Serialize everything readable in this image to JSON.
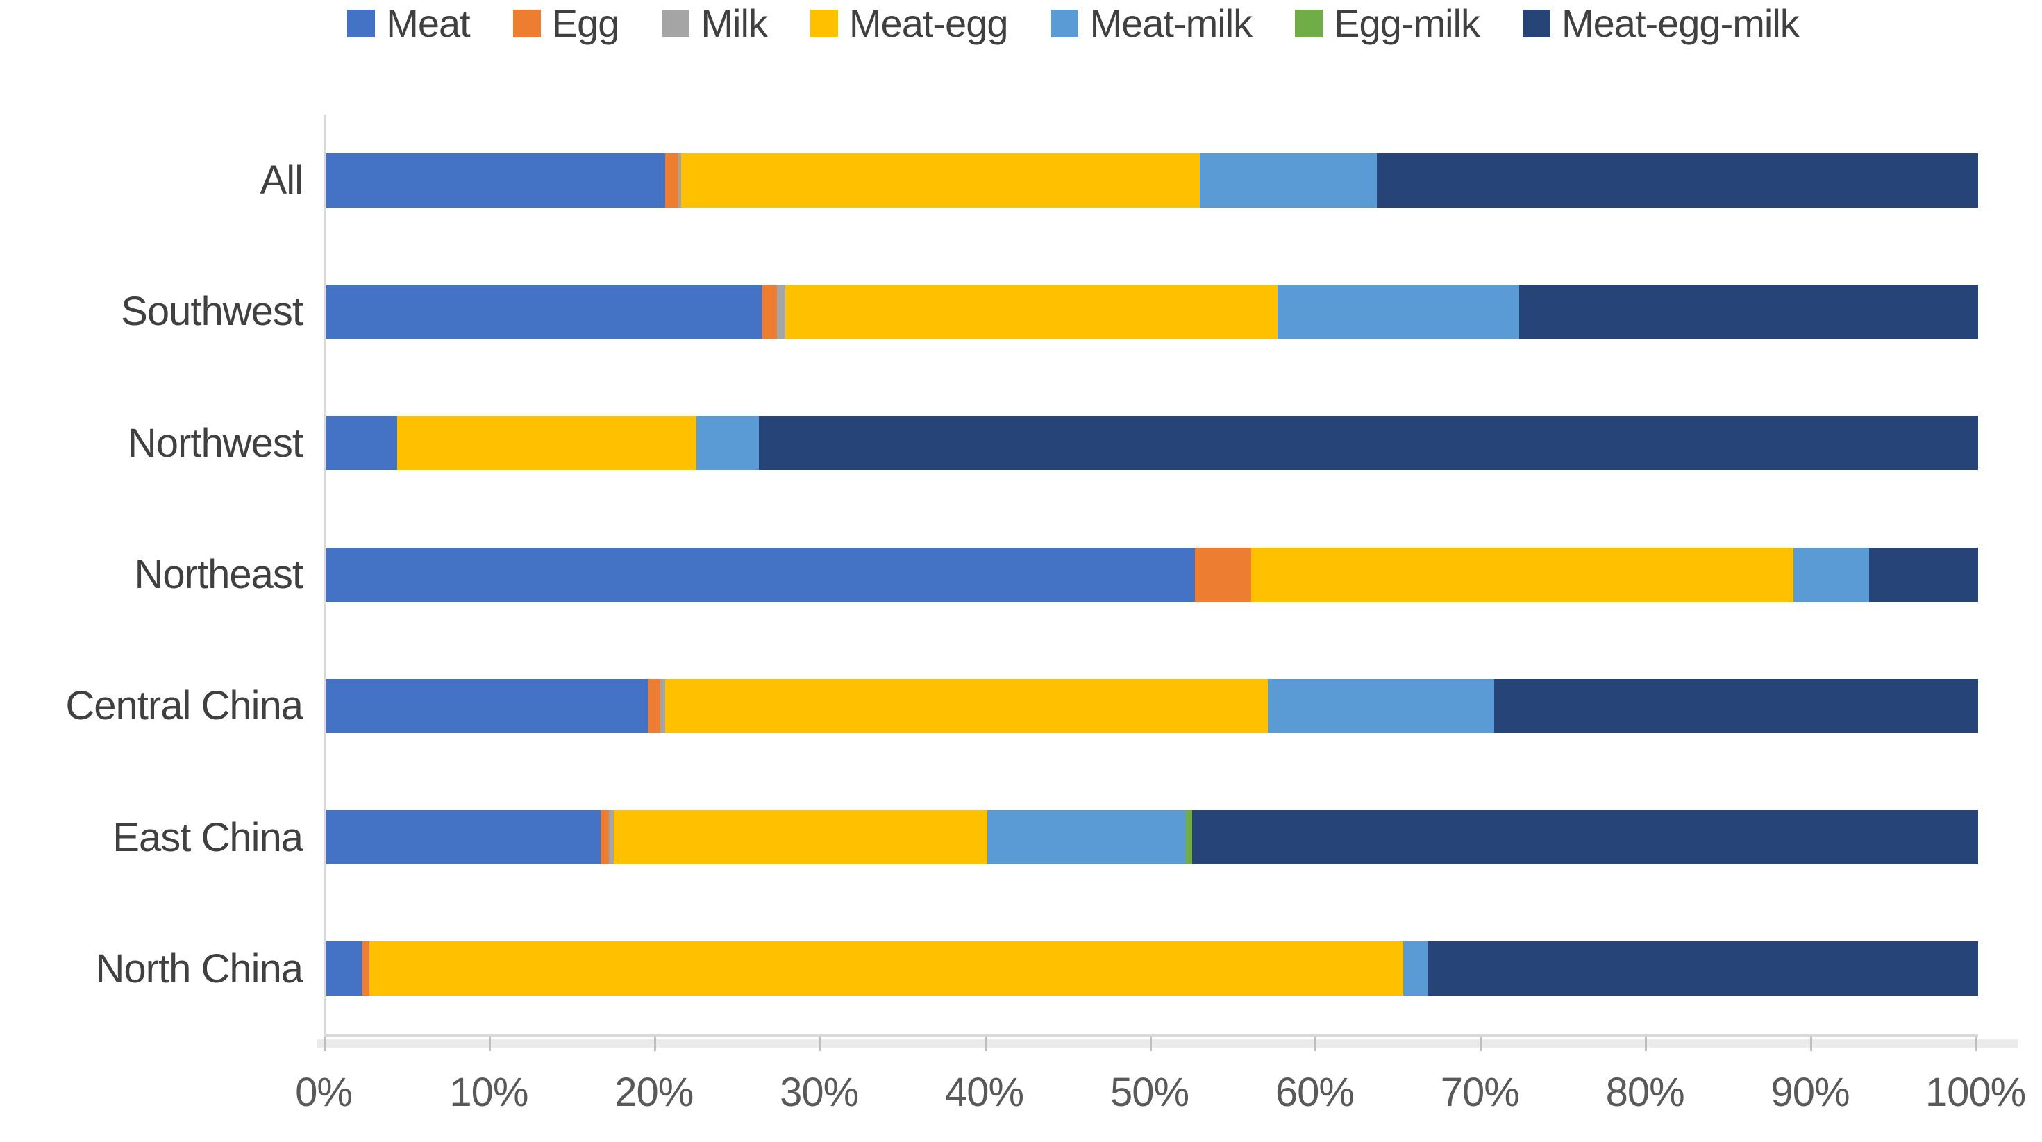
{
  "chart_data": {
    "type": "bar",
    "orientation": "horizontal",
    "stacked": true,
    "stacked_100_percent": true,
    "title": "",
    "xlabel": "",
    "ylabel": "",
    "x_axis_range": [
      0,
      100
    ],
    "x_tick_labels": [
      "0%",
      "10%",
      "20%",
      "30%",
      "40%",
      "50%",
      "60%",
      "70%",
      "80%",
      "90%",
      "100%"
    ],
    "legend_position": "top",
    "grid": false,
    "categories": [
      "All",
      "Southwest",
      "Northwest",
      "Northeast",
      "Central China",
      "East China",
      "North China"
    ],
    "series": [
      {
        "name": "Meat",
        "color": "#4472C4",
        "values": [
          20.5,
          26.4,
          4.3,
          52.6,
          19.5,
          16.6,
          2.2
        ]
      },
      {
        "name": "Egg",
        "color": "#ED7D31",
        "values": [
          0.8,
          0.9,
          0,
          3.4,
          0.7,
          0.5,
          0.4
        ]
      },
      {
        "name": "Milk",
        "color": "#A5A5A5",
        "values": [
          0.2,
          0.5,
          0,
          0,
          0.3,
          0.3,
          0
        ]
      },
      {
        "name": "Meat-egg",
        "color": "#FFC000",
        "values": [
          31.4,
          29.8,
          18.1,
          32.8,
          36.5,
          22.6,
          62.6
        ]
      },
      {
        "name": "Meat-milk",
        "color": "#5B9BD5",
        "values": [
          10.7,
          14.6,
          3.8,
          4.6,
          13.7,
          12.0,
          1.5
        ]
      },
      {
        "name": "Egg-milk",
        "color": "#70AD47",
        "values": [
          0,
          0,
          0,
          0,
          0,
          0.4,
          0
        ]
      },
      {
        "name": "Meat-egg-milk",
        "color": "#264478",
        "values": [
          36.4,
          27.8,
          73.8,
          6.6,
          29.3,
          47.6,
          33.3
        ]
      }
    ],
    "axis_line_color": "#D9D9D9",
    "tick_mark_color": "#BFBFBF",
    "label_text_color": "#404040",
    "tick_text_color": "#595959"
  }
}
